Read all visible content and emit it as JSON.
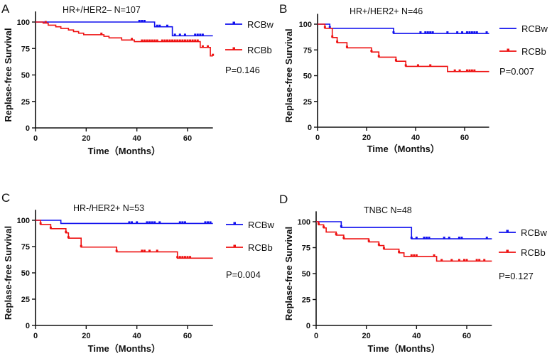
{
  "chart_data": [
    {
      "type": "line",
      "panel": "A",
      "title": "HR+/HER2–   N=107",
      "xlabel": "Time（Months）",
      "ylabel": "Replase-free Survival",
      "xlim": [
        0,
        70
      ],
      "ylim": [
        0,
        110
      ],
      "xticks": [
        0,
        20,
        40,
        60
      ],
      "yticks": [
        0,
        25,
        50,
        75,
        100
      ],
      "pvalue": "P=0.146",
      "legend": "right",
      "series": [
        {
          "name": "RCBw",
          "color": "#1010ee",
          "legend_marker": true,
          "steps": [
            [
              0,
              100
            ],
            [
              47,
              95.5
            ],
            [
              54,
              87
            ]
          ],
          "end": 70,
          "censored": [
            41,
            42,
            43,
            48,
            49,
            52,
            55,
            57,
            59,
            63,
            64,
            65,
            66
          ]
        },
        {
          "name": "RCBb",
          "color": "#ee1111",
          "legend_marker": true,
          "steps": [
            [
              0,
              100
            ],
            [
              3,
              99
            ],
            [
              5,
              97
            ],
            [
              8,
              95.5
            ],
            [
              10,
              94
            ],
            [
              13,
              92.5
            ],
            [
              15,
              91
            ],
            [
              17,
              89.5
            ],
            [
              19,
              88
            ],
            [
              27,
              86.5
            ],
            [
              29,
              85
            ],
            [
              34,
              83
            ],
            [
              39,
              81.5
            ],
            [
              65,
              76
            ],
            [
              69,
              68
            ]
          ],
          "end": 70,
          "censored": [
            4,
            26,
            38,
            42,
            43,
            44,
            45,
            46,
            47,
            48,
            50,
            51,
            52,
            53,
            54,
            55,
            56,
            57,
            58,
            59,
            60,
            61,
            62,
            63,
            64,
            66,
            68,
            70
          ]
        }
      ]
    },
    {
      "type": "line",
      "panel": "B",
      "title": "HR+/HER2+   N=46",
      "xlabel": "Time（Months）",
      "ylabel": "Replase-free Survival",
      "xlim": [
        0,
        70
      ],
      "ylim": [
        0,
        110
      ],
      "xticks": [
        0,
        20,
        40,
        60
      ],
      "yticks": [
        0,
        25,
        50,
        75,
        100
      ],
      "pvalue": "P=0.007",
      "legend": "right",
      "series": [
        {
          "name": "RCBw",
          "color": "#1010ee",
          "legend_marker": false,
          "steps": [
            [
              0,
              100
            ],
            [
              5,
              96
            ],
            [
              31,
              91
            ]
          ],
          "end": 70,
          "censored": [
            5,
            31,
            42,
            44,
            45,
            46,
            47,
            53,
            57,
            59,
            61,
            62,
            63,
            64,
            65,
            69
          ]
        },
        {
          "name": "RCBb",
          "color": "#ee1111",
          "legend_marker": true,
          "steps": [
            [
              0,
              100
            ],
            [
              3,
              96
            ],
            [
              6,
              87
            ],
            [
              8,
              82
            ],
            [
              12,
              77
            ],
            [
              22,
              73
            ],
            [
              25,
              68
            ],
            [
              32,
              64
            ],
            [
              36,
              59
            ],
            [
              53,
              54
            ]
          ],
          "end": 70,
          "censored": [
            3,
            6,
            8,
            12,
            22,
            25,
            32,
            36,
            41,
            46,
            56,
            58,
            61,
            62,
            63,
            64
          ]
        }
      ]
    },
    {
      "type": "line",
      "panel": "C",
      "title": "HR-/HER2+   N=53",
      "xlabel": "Time（Months）",
      "ylabel": "Replase-free Survival",
      "xlim": [
        0,
        70
      ],
      "ylim": [
        0,
        110
      ],
      "xticks": [
        0,
        20,
        40,
        60
      ],
      "yticks": [
        0,
        25,
        50,
        75,
        100
      ],
      "pvalue": "P=0.004",
      "legend": "right",
      "series": [
        {
          "name": "RCBw",
          "color": "#1010ee",
          "legend_marker": true,
          "steps": [
            [
              0,
              100
            ],
            [
              10,
              97
            ]
          ],
          "end": 70,
          "censored": [
            37,
            38,
            40,
            44,
            45,
            46,
            47,
            49,
            57,
            58,
            59,
            67,
            68,
            69
          ]
        },
        {
          "name": "RCBb",
          "color": "#ee1111",
          "legend_marker": true,
          "steps": [
            [
              0,
              100
            ],
            [
              2,
              96
            ],
            [
              6,
              92
            ],
            [
              12,
              88
            ],
            [
              13,
              83
            ],
            [
              18,
              74.5
            ],
            [
              32,
              70
            ],
            [
              56,
              64
            ]
          ],
          "end": 70,
          "censored": [
            2,
            6,
            12,
            13,
            18,
            32,
            42,
            43,
            45,
            48,
            56,
            57,
            58,
            59,
            60,
            61
          ]
        }
      ]
    },
    {
      "type": "line",
      "panel": "D",
      "title": "TNBC  N=48",
      "xlabel": "Time（Months）",
      "ylabel": "Replase-free Survival",
      "xlim": [
        0,
        70
      ],
      "ylim": [
        0,
        110
      ],
      "xticks": [
        0,
        20,
        40,
        60
      ],
      "yticks": [
        0,
        25,
        50,
        75,
        100
      ],
      "pvalue": "P=0.127",
      "legend": "right",
      "series": [
        {
          "name": "RCBw",
          "color": "#1010ee",
          "legend_marker": true,
          "steps": [
            [
              0,
              100
            ],
            [
              10,
              94.5
            ],
            [
              38,
              83.5
            ]
          ],
          "end": 70,
          "censored": [
            10,
            38,
            40,
            43,
            44,
            45,
            51,
            53,
            57,
            58,
            68
          ]
        },
        {
          "name": "RCBb",
          "color": "#ee1111",
          "legend_marker": true,
          "steps": [
            [
              0,
              100
            ],
            [
              1,
              97
            ],
            [
              3,
              94
            ],
            [
              4,
              90
            ],
            [
              8,
              87
            ],
            [
              11,
              83.5
            ],
            [
              21,
              80.5
            ],
            [
              25,
              77
            ],
            [
              27,
              73.5
            ],
            [
              33,
              70
            ],
            [
              35,
              66.5
            ],
            [
              48,
              62
            ]
          ],
          "end": 70,
          "censored": [
            1,
            3,
            8,
            11,
            21,
            25,
            27,
            33,
            38,
            39,
            40,
            47,
            50,
            54,
            57,
            59,
            60,
            64,
            65,
            67
          ]
        }
      ]
    }
  ]
}
